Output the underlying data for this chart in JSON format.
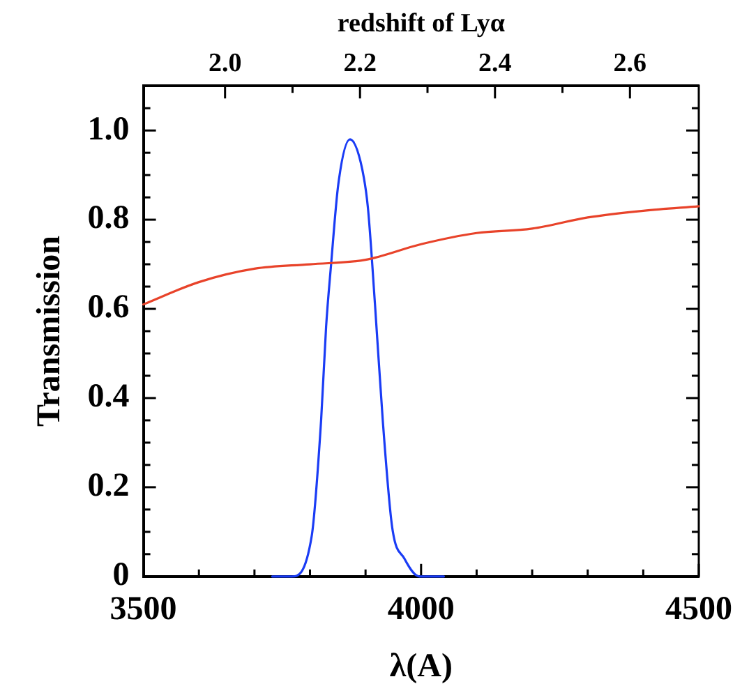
{
  "chart_data": {
    "type": "line",
    "xlabel": "λ(A)",
    "ylabel": "Transmission",
    "x2label": "redshift of Lyα",
    "series": [
      {
        "color": "#e8432a",
        "x": [
          3500,
          3600,
          3700,
          3800,
          3900,
          4000,
          4100,
          4200,
          4300,
          4400,
          4500
        ],
        "values": [
          0.61,
          0.66,
          0.69,
          0.7,
          0.71,
          0.745,
          0.77,
          0.78,
          0.805,
          0.82,
          0.83
        ]
      },
      {
        "color": "#1a3cf5",
        "x": [
          3732,
          3767,
          3803,
          3820,
          3829,
          3838,
          3851,
          3872,
          3891,
          3904,
          3917,
          3931,
          3948,
          3970,
          3997,
          4041
        ],
        "values": [
          0,
          0,
          0.09,
          0.35,
          0.56,
          0.7,
          0.88,
          0.98,
          0.93,
          0.83,
          0.61,
          0.35,
          0.11,
          0.04,
          0,
          0
        ]
      }
    ],
    "xlim": [
      3500,
      4500
    ],
    "xticks": [
      3500,
      {
        "value": 3600,
        "label": null
      },
      {
        "value": 3700,
        "label": null
      },
      {
        "value": 3800,
        "label": null
      },
      {
        "value": 3900,
        "label": null
      },
      4000,
      {
        "value": 4100,
        "label": null
      },
      {
        "value": 4200,
        "label": null
      },
      {
        "value": 4300,
        "label": null
      },
      {
        "value": 4400,
        "label": null
      },
      4500
    ],
    "x2lim": [
      1.879,
      2.702
    ],
    "x2ticks": [
      {
        "value": 2,
        "label": "2.0"
      },
      {
        "value": 2.1,
        "label": null
      },
      {
        "value": 2.2,
        "label": "2.2"
      },
      {
        "value": 2.3,
        "label": null
      },
      {
        "value": 2.4,
        "label": "2.4"
      },
      {
        "value": 2.5,
        "label": null
      },
      {
        "value": 2.6,
        "label": "2.6"
      }
    ],
    "ylim": [
      0,
      1.1
    ],
    "yticks": [
      0,
      {
        "value": 0.05,
        "label": null
      },
      {
        "value": 0.1,
        "label": null
      },
      {
        "value": 0.15,
        "label": null
      },
      0.2,
      {
        "value": 0.25,
        "label": null
      },
      {
        "value": 0.3,
        "label": null
      },
      {
        "value": 0.35,
        "label": null
      },
      0.4,
      {
        "value": 0.45,
        "label": null
      },
      {
        "value": 0.5,
        "label": null
      },
      {
        "value": 0.55,
        "label": null
      },
      0.6,
      {
        "value": 0.65,
        "label": null
      },
      {
        "value": 0.7,
        "label": null
      },
      {
        "value": 0.75,
        "label": null
      },
      0.8,
      {
        "value": 0.85,
        "label": null
      },
      {
        "value": 0.9,
        "label": null
      },
      {
        "value": 0.95,
        "label": null
      },
      {
        "value": 1.0,
        "label": "1.0"
      },
      {
        "value": 1.05,
        "label": null
      }
    ],
    "grid": false,
    "legend": false,
    "marker": "none",
    "line_style": "solid"
  }
}
